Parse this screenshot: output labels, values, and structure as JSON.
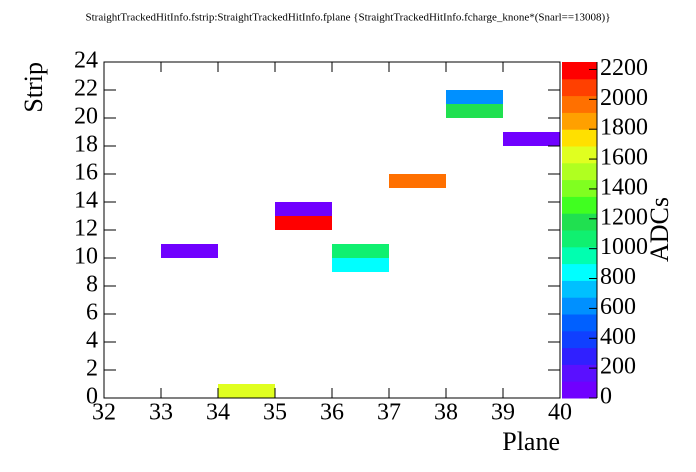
{
  "chart_data": {
    "type": "heatmap",
    "title": "StraightTrackedHitInfo.fstrip:StraightTrackedHitInfo.fplane {StraightTrackedHitInfo.fcharge_knone*(Snarl==13008)}",
    "x_label": "Plane",
    "y_label": "Strip",
    "z_label": "ADCs",
    "x": [
      33,
      34,
      35,
      35,
      36,
      36,
      37,
      38,
      38,
      39
    ],
    "y": [
      10,
      0,
      12,
      13,
      9,
      10,
      15,
      20,
      21,
      18
    ],
    "values": [
      50,
      1650,
      2200,
      50,
      800,
      1050,
      1950,
      1150,
      600,
      50
    ],
    "binwidth": [
      1,
      1
    ],
    "xlim": [
      32,
      40
    ],
    "xticks": [
      32,
      33,
      34,
      35,
      36,
      37,
      38,
      39,
      40
    ],
    "ylim": [
      0,
      24
    ],
    "yticks": [
      0,
      2,
      4,
      6,
      8,
      10,
      12,
      14,
      16,
      18,
      20,
      22,
      24
    ],
    "zlim": [
      0,
      2250
    ],
    "zticks": [
      0,
      200,
      400,
      600,
      800,
      1000,
      1200,
      1400,
      1600,
      1800,
      2000,
      2200
    ],
    "palette": [
      "#7000ff",
      "#5a10ff",
      "#3020ff",
      "#1040ff",
      "#0060ff",
      "#0090ff",
      "#00c0ff",
      "#00ffff",
      "#00ffb0",
      "#10f070",
      "#20e050",
      "#40ff20",
      "#80ff20",
      "#b0ff20",
      "#e0ff20",
      "#ffe000",
      "#ffa000",
      "#ff7000",
      "#ff4000",
      "#ff0000"
    ]
  }
}
